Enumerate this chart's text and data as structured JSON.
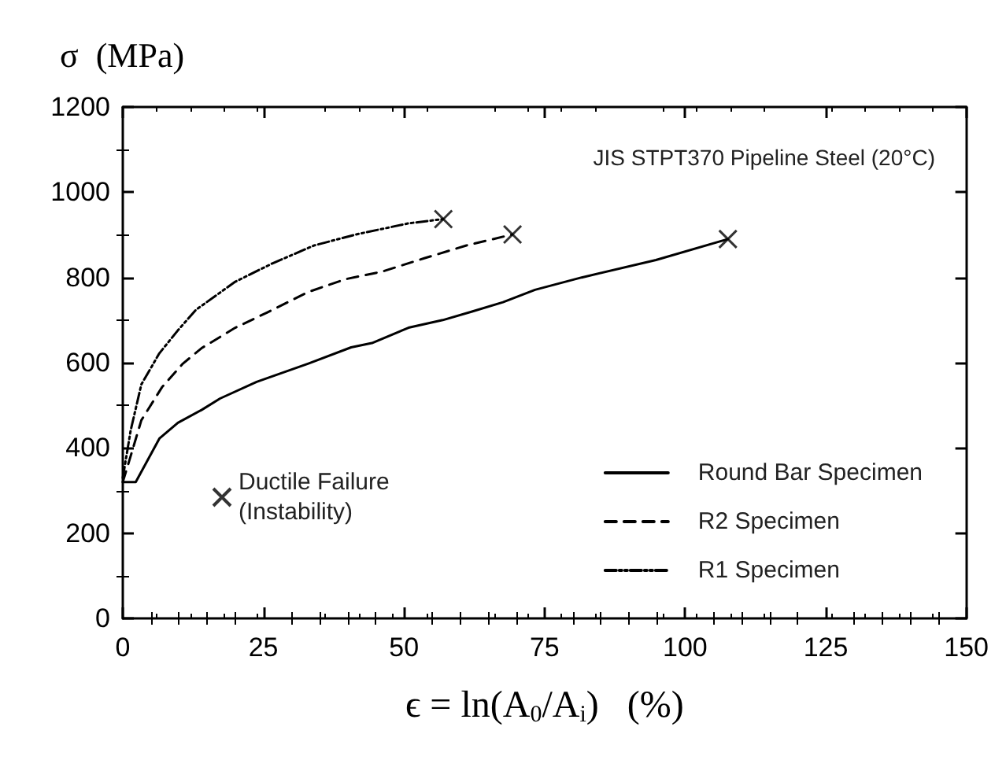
{
  "chart_data": {
    "type": "line",
    "title": "JIS STPT370 Pipeline Steel (20°C)",
    "xlabel": "ϵ = ln(A$_{0}$/A$_{i}$)   (%)",
    "ylabel": "σ  (MPa)",
    "xlim": [
      0,
      150
    ],
    "xticks": [
      0,
      25,
      50,
      75,
      100,
      125,
      150
    ],
    "ylim": [
      0,
      1200
    ],
    "yticks": [
      0,
      200,
      400,
      600,
      800,
      1000,
      1200
    ],
    "grid": false,
    "legend": "bottom right",
    "marker": "none",
    "series": [
      {
        "name": "Round Bar Specimen",
        "color": "#000000",
        "line_style": "solid",
        "x": [
          0,
          2.3,
          6.5,
          9.8,
          14,
          17.3,
          23.8,
          33,
          40.6,
          44.3,
          50.8,
          56.9,
          62.1,
          67.6,
          73.3,
          81.6,
          94.8,
          107.6
        ],
        "values": [
          320,
          320,
          422,
          459,
          489,
          516,
          555,
          598,
          636,
          646,
          682,
          700,
          720,
          742,
          771,
          800,
          841,
          890
        ]
      },
      {
        "name": "R2 Specimen",
        "color": "#000000",
        "line_style": "dashed",
        "x": [
          0,
          1.4,
          3.3,
          7,
          10.7,
          14,
          20,
          25.7,
          33,
          39.6,
          46.2,
          53.6,
          61.1,
          69.3
        ],
        "values": [
          320,
          381,
          465,
          543,
          598,
          634,
          682,
          718,
          766,
          796,
          814,
          845,
          875,
          901
        ]
      },
      {
        "name": "R1 Specimen",
        "color": "#000000",
        "line_style": "dashdot",
        "x": [
          0,
          1.4,
          3.3,
          6.5,
          9.8,
          13,
          20,
          26.6,
          34,
          41.5,
          50.8,
          57
        ],
        "values": [
          330,
          441,
          549,
          622,
          676,
          724,
          790,
          833,
          875,
          901,
          927,
          937
        ]
      },
      {
        "name": "Ductile Failure\n(Instability)",
        "type": "scatter",
        "marker": "cross",
        "color": "#000000",
        "x": [
          57,
          69.3,
          107.6
        ],
        "values": [
          937,
          901,
          890
        ]
      }
    ]
  }
}
